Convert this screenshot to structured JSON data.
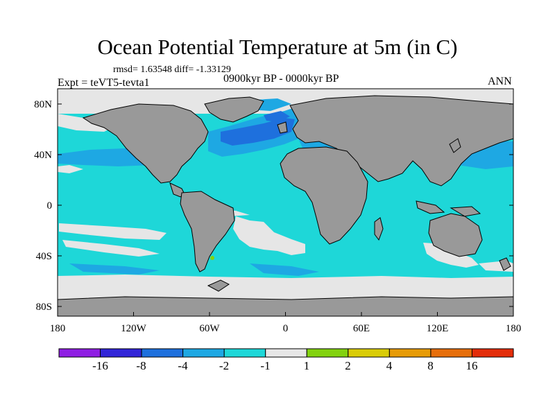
{
  "title": "Ocean Potential Temperature at 5m (in C)",
  "stats_line": "rmsd= 1.63548 diff= -1.33129",
  "experiment": "Expt = teVT5-tevta1",
  "period": "0900kyr BP - 0000kyr BP",
  "season": "ANN",
  "map_data": {
    "variable": "Ocean Potential Temperature at 5m",
    "units": "C",
    "projection": "cylindrical equidistant",
    "lon_range": [
      -180,
      180
    ],
    "lat_range": [
      -90,
      90
    ],
    "lon_tick_labels": [
      "180",
      "120W",
      "60W",
      "0",
      "60E",
      "120E",
      "180"
    ],
    "lat_tick_labels": [
      "80N",
      "40N",
      "0",
      "40S",
      "80S"
    ],
    "land_color": "#999999",
    "coastline_color": "#000000"
  },
  "colorbar": {
    "bins": [
      {
        "color": "#8f1ee3"
      },
      {
        "color": "#3225d8"
      },
      {
        "color": "#1e70dd"
      },
      {
        "color": "#1ea8e3"
      },
      {
        "color": "#1ed7d8"
      },
      {
        "color": "#e6e6e6"
      },
      {
        "color": "#82d20f"
      },
      {
        "color": "#d9cc07"
      },
      {
        "color": "#e69b07"
      },
      {
        "color": "#e66e0a"
      },
      {
        "color": "#e32d0a"
      }
    ],
    "labels": [
      "-16",
      "-8",
      "-4",
      "-2",
      "-1",
      "1",
      "2",
      "4",
      "8",
      "16"
    ]
  },
  "colors": {
    "ocean_default": "#1ed7d8",
    "near_zero": "#e6e6e6",
    "cooling_moderate": "#1ea8e3",
    "cooling_strong": "#1e70dd",
    "warming_slight": "#82d20f",
    "land": "#999999"
  }
}
